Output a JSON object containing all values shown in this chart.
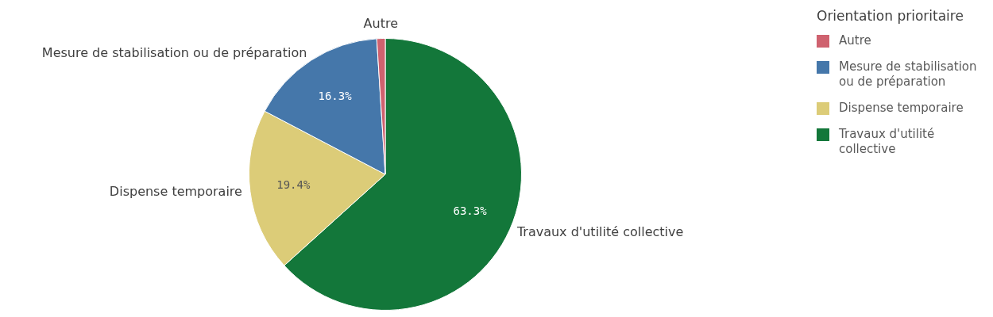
{
  "chart_data": {
    "type": "pie",
    "legend_title": "Orientation prioritaire",
    "legend": "top right",
    "categories": [
      "Travaux d'utilité collective",
      "Dispense temporaire",
      "Mesure de stabilisation ou de préparation",
      "Autre"
    ],
    "values": [
      63.3,
      19.4,
      16.3,
      1.0
    ],
    "colors": [
      "#13773a",
      "#dccc78",
      "#4577aa",
      "#cf626f"
    ],
    "value_labels": [
      "63.3%",
      "19.4%",
      "16.3%",
      null
    ]
  }
}
